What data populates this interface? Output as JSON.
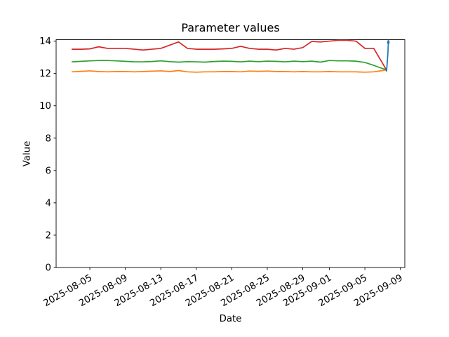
{
  "figure": {
    "background": "#ffffff"
  },
  "chart_data": {
    "type": "line",
    "title": "Parameter values",
    "xlabel": "Date",
    "ylabel": "Value",
    "background": "#ffffff",
    "axis_color": "#000000",
    "grid": false,
    "legend": "none",
    "x_unit": "days since 2025-08-01",
    "xlim_days": [
      0.2,
      39.5
    ],
    "ylim": [
      0,
      14.09
    ],
    "yticks": [
      {
        "value": 0,
        "label": "0"
      },
      {
        "value": 2,
        "label": "2"
      },
      {
        "value": 4,
        "label": "4"
      },
      {
        "value": 6,
        "label": "6"
      },
      {
        "value": 8,
        "label": "8"
      },
      {
        "value": 10,
        "label": "10"
      },
      {
        "value": 12,
        "label": "12"
      },
      {
        "value": 14,
        "label": "14"
      }
    ],
    "xticks": [
      {
        "day": 4,
        "label": "2025-08-05"
      },
      {
        "day": 8,
        "label": "2025-08-09"
      },
      {
        "day": 12,
        "label": "2025-08-13"
      },
      {
        "day": 16,
        "label": "2025-08-17"
      },
      {
        "day": 20,
        "label": "2025-08-21"
      },
      {
        "day": 24,
        "label": "2025-08-25"
      },
      {
        "day": 28,
        "label": "2025-08-29"
      },
      {
        "day": 31,
        "label": "2025-09-01"
      },
      {
        "day": 35,
        "label": "2025-09-05"
      },
      {
        "day": 39,
        "label": "2025-09-09"
      }
    ],
    "series": [
      {
        "name": "series-orange",
        "color": "#ff7f0e",
        "points": [
          [
            2,
            12.1
          ],
          [
            3,
            12.13
          ],
          [
            4,
            12.16
          ],
          [
            5,
            12.12
          ],
          [
            6,
            12.1
          ],
          [
            7,
            12.12
          ],
          [
            8,
            12.12
          ],
          [
            9,
            12.1
          ],
          [
            10,
            12.12
          ],
          [
            11,
            12.14
          ],
          [
            12,
            12.16
          ],
          [
            13,
            12.12
          ],
          [
            14,
            12.18
          ],
          [
            15,
            12.1
          ],
          [
            16,
            12.08
          ],
          [
            17,
            12.1
          ],
          [
            18,
            12.1
          ],
          [
            19,
            12.12
          ],
          [
            20,
            12.12
          ],
          [
            21,
            12.1
          ],
          [
            22,
            12.15
          ],
          [
            23,
            12.13
          ],
          [
            24,
            12.15
          ],
          [
            25,
            12.12
          ],
          [
            26,
            12.12
          ],
          [
            27,
            12.1
          ],
          [
            28,
            12.12
          ],
          [
            29,
            12.1
          ],
          [
            30,
            12.1
          ],
          [
            31,
            12.12
          ],
          [
            32,
            12.1
          ],
          [
            33,
            12.1
          ],
          [
            34,
            12.1
          ],
          [
            35,
            12.08
          ],
          [
            36,
            12.1
          ],
          [
            37,
            12.18
          ],
          [
            37.4,
            12.22
          ]
        ]
      },
      {
        "name": "series-green",
        "color": "#2ca02c",
        "points": [
          [
            2,
            12.72
          ],
          [
            3,
            12.75
          ],
          [
            4,
            12.78
          ],
          [
            5,
            12.8
          ],
          [
            6,
            12.8
          ],
          [
            7,
            12.78
          ],
          [
            8,
            12.75
          ],
          [
            9,
            12.72
          ],
          [
            10,
            12.72
          ],
          [
            11,
            12.74
          ],
          [
            12,
            12.78
          ],
          [
            13,
            12.73
          ],
          [
            14,
            12.7
          ],
          [
            15,
            12.73
          ],
          [
            16,
            12.72
          ],
          [
            17,
            12.7
          ],
          [
            18,
            12.74
          ],
          [
            19,
            12.76
          ],
          [
            20,
            12.75
          ],
          [
            21,
            12.72
          ],
          [
            22,
            12.76
          ],
          [
            23,
            12.73
          ],
          [
            24,
            12.76
          ],
          [
            25,
            12.75
          ],
          [
            26,
            12.72
          ],
          [
            27,
            12.76
          ],
          [
            28,
            12.73
          ],
          [
            29,
            12.76
          ],
          [
            30,
            12.7
          ],
          [
            31,
            12.8
          ],
          [
            32,
            12.78
          ],
          [
            33,
            12.78
          ],
          [
            34,
            12.76
          ],
          [
            35,
            12.68
          ],
          [
            36,
            12.5
          ],
          [
            37,
            12.3
          ],
          [
            37.4,
            12.24
          ]
        ]
      },
      {
        "name": "series-red",
        "color": "#d62728",
        "points": [
          [
            2,
            13.5
          ],
          [
            3,
            13.5
          ],
          [
            4,
            13.52
          ],
          [
            5,
            13.65
          ],
          [
            6,
            13.55
          ],
          [
            7,
            13.55
          ],
          [
            8,
            13.55
          ],
          [
            9,
            13.5
          ],
          [
            10,
            13.45
          ],
          [
            11,
            13.5
          ],
          [
            12,
            13.55
          ],
          [
            13,
            13.75
          ],
          [
            14,
            13.95
          ],
          [
            15,
            13.55
          ],
          [
            16,
            13.5
          ],
          [
            17,
            13.5
          ],
          [
            18,
            13.5
          ],
          [
            19,
            13.52
          ],
          [
            20,
            13.55
          ],
          [
            21,
            13.68
          ],
          [
            22,
            13.55
          ],
          [
            23,
            13.5
          ],
          [
            24,
            13.5
          ],
          [
            25,
            13.45
          ],
          [
            26,
            13.55
          ],
          [
            27,
            13.5
          ],
          [
            28,
            13.6
          ],
          [
            29,
            13.98
          ],
          [
            30,
            13.95
          ],
          [
            31,
            14.0
          ],
          [
            32,
            14.05
          ],
          [
            33,
            14.05
          ],
          [
            34,
            14.0
          ],
          [
            35,
            13.55
          ],
          [
            36,
            13.55
          ],
          [
            37.4,
            12.25
          ]
        ]
      },
      {
        "name": "series-blue",
        "color": "#1f77b4",
        "points": [
          [
            37.4,
            12.2
          ],
          [
            37.45,
            12.15
          ],
          [
            37.6,
            13.3
          ],
          [
            37.65,
            14.05
          ],
          [
            37.55,
            13.9
          ],
          [
            37.7,
            13.85
          ],
          [
            37.72,
            13.98
          ]
        ]
      }
    ]
  }
}
